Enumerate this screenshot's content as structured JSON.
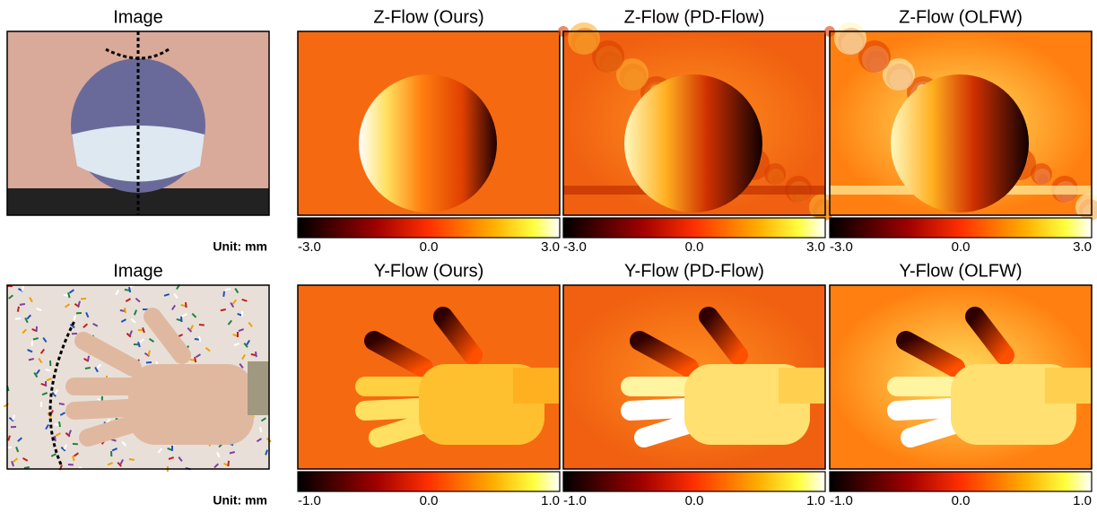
{
  "rows": [
    {
      "image_title": "Image",
      "unit": "Unit: mm",
      "panels": [
        {
          "title": "Z-Flow (Ours)"
        },
        {
          "title": "Z-Flow (PD-Flow)"
        },
        {
          "title": "Z-Flow (OLFW)"
        }
      ],
      "colorbar_ticks": [
        "-3.0",
        "0.0",
        "3.0"
      ]
    },
    {
      "image_title": "Image",
      "unit": "Unit: mm",
      "panels": [
        {
          "title": "Y-Flow (Ours)"
        },
        {
          "title": "Y-Flow (PD-Flow)"
        },
        {
          "title": "Y-Flow (OLFW)"
        }
      ],
      "colorbar_ticks": [
        "-1.0",
        "0.0",
        "1.0"
      ]
    }
  ]
}
